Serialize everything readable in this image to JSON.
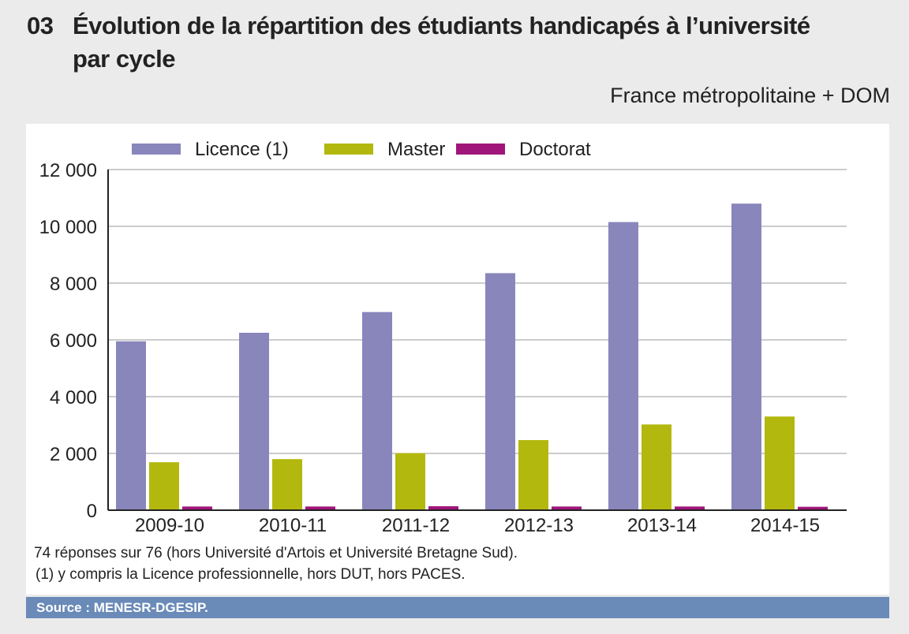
{
  "header": {
    "number": "03",
    "title_line1": "Évolution de la répartition des étudiants handicapés à l’université",
    "title_line2": "par cycle",
    "subtitle": "France métropolitaine + DOM"
  },
  "chart_data": {
    "type": "bar",
    "categories": [
      "2009-10",
      "2010-11",
      "2011-12",
      "2012-13",
      "2013-14",
      "2014-15"
    ],
    "series": [
      {
        "name": "Licence (1)",
        "color": "#8986bc",
        "values": [
          5950,
          6250,
          6980,
          8350,
          10150,
          10800
        ]
      },
      {
        "name": "Master",
        "color": "#b3b80e",
        "values": [
          1690,
          1800,
          2010,
          2470,
          3020,
          3300
        ]
      },
      {
        "name": "Doctorat",
        "color": "#a0157a",
        "values": [
          130,
          130,
          140,
          130,
          130,
          120
        ]
      }
    ],
    "ylim": [
      0,
      12000
    ],
    "yticks": [
      0,
      2000,
      4000,
      6000,
      8000,
      10000,
      12000
    ],
    "ytick_labels": [
      "0",
      "2 000",
      "4 000",
      "6 000",
      "8 000",
      "10 000",
      "12 000"
    ],
    "grid": true,
    "legend": "top"
  },
  "notes": {
    "line1": "74 réponses sur 76 (hors Université d'Artois et Université Bretagne Sud).",
    "line2": "(1) y compris la Licence professionnelle, hors DUT, hors PACES."
  },
  "source": "Source : MENESR-DGESIP."
}
